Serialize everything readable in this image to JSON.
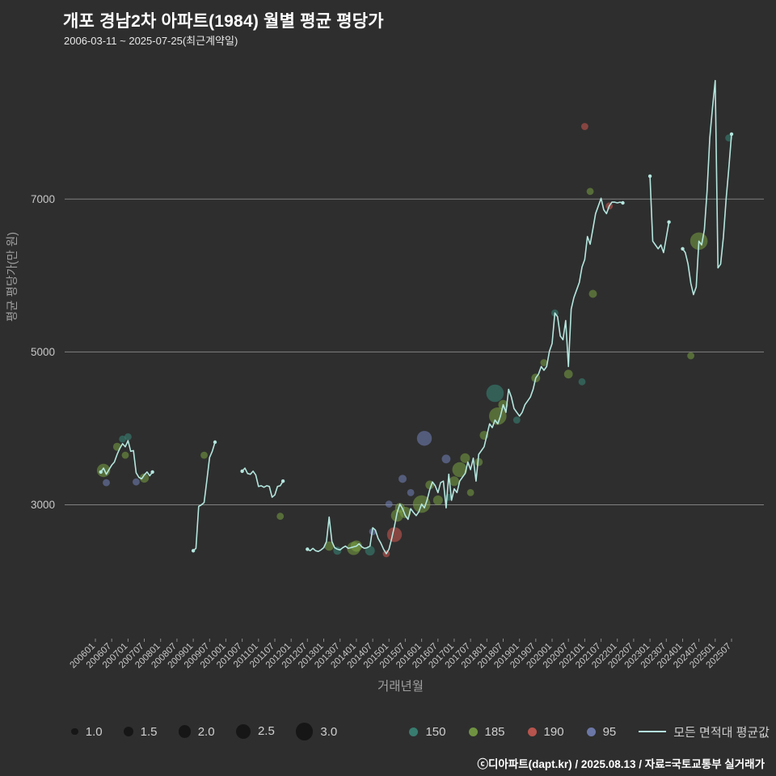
{
  "header": {
    "title": "개포 경남2차 아파트(1984) 월별 평균 평당가",
    "subtitle": "2006-03-11 ~ 2025-07-25(최근계약일)"
  },
  "footer": {
    "credit": "ⓒ디아파트(dapt.kr) / 2025.08.13 / 자료=국토교통부 실거래가"
  },
  "colors": {
    "background": "#2e2e2e",
    "gridline": "#808080",
    "tick_text": "#c8c8c8",
    "axis_title_text": "#9f9f9f",
    "legend_text": "#cfcfcf",
    "size_legend_dot": "#161616"
  },
  "chart_data": {
    "type": "line",
    "title": "개포 경남2차 아파트(1984) 월별 평균 평당가",
    "xlabel": "거래년월",
    "ylabel": "평균 평당가(만 원)",
    "ylim": [
      1250,
      8600
    ],
    "yticks": [
      "3000",
      "5000",
      "7000"
    ],
    "xticks": [
      "200601",
      "200607",
      "200701",
      "200707",
      "200801",
      "200807",
      "200901",
      "200907",
      "201001",
      "201007",
      "201101",
      "201107",
      "201201",
      "201207",
      "201301",
      "201307",
      "201401",
      "201407",
      "201501",
      "201507",
      "201601",
      "201607",
      "201701",
      "201707",
      "201801",
      "201807",
      "201901",
      "201907",
      "202001",
      "202007",
      "202101",
      "202107",
      "202201",
      "202207",
      "202301",
      "202307",
      "202401",
      "202407",
      "202501",
      "202507"
    ],
    "grid": true,
    "legend_position": "bottom",
    "size_legend": [
      {
        "label": "1.0",
        "value": 1.0
      },
      {
        "label": "1.5",
        "value": 1.5
      },
      {
        "label": "2.0",
        "value": 2.0
      },
      {
        "label": "2.5",
        "value": 2.5
      },
      {
        "label": "3.0",
        "value": 3.0
      }
    ],
    "line": {
      "name": "모든 면적대 평균값",
      "color": "#b4e6de",
      "segments": [
        [
          [
            200603,
            3430
          ],
          [
            200604,
            3480
          ],
          [
            200605,
            3400
          ],
          [
            200606,
            3460
          ],
          [
            200607,
            3520
          ],
          [
            200608,
            3560
          ],
          [
            200609,
            3660
          ],
          [
            200610,
            3740
          ],
          [
            200611,
            3800
          ],
          [
            200612,
            3760
          ],
          [
            200701,
            3840
          ],
          [
            200702,
            3700
          ],
          [
            200703,
            3710
          ],
          [
            200704,
            3420
          ],
          [
            200705,
            3360
          ],
          [
            200706,
            3340
          ],
          [
            200707,
            3390
          ],
          [
            200708,
            3430
          ],
          [
            200709,
            3380
          ],
          [
            200710,
            3430
          ]
        ],
        [
          [
            200901,
            2400
          ],
          [
            200902,
            2430
          ],
          [
            200903,
            2980
          ],
          [
            200904,
            3000
          ],
          [
            200905,
            3030
          ],
          [
            200906,
            3320
          ],
          [
            200907,
            3620
          ],
          [
            200908,
            3700
          ],
          [
            200909,
            3820
          ]
        ],
        [
          [
            201007,
            3440
          ],
          [
            201008,
            3480
          ],
          [
            201009,
            3410
          ],
          [
            201010,
            3400
          ],
          [
            201011,
            3440
          ],
          [
            201012,
            3390
          ],
          [
            201101,
            3240
          ],
          [
            201102,
            3250
          ],
          [
            201103,
            3230
          ],
          [
            201104,
            3250
          ],
          [
            201105,
            3240
          ],
          [
            201106,
            3100
          ],
          [
            201107,
            3130
          ],
          [
            201108,
            3240
          ],
          [
            201109,
            3250
          ],
          [
            201110,
            3310
          ]
        ],
        [
          [
            201207,
            2420
          ],
          [
            201208,
            2400
          ],
          [
            201209,
            2430
          ],
          [
            201210,
            2400
          ],
          [
            201211,
            2390
          ],
          [
            201212,
            2410
          ],
          [
            201301,
            2440
          ],
          [
            201302,
            2520
          ],
          [
            201303,
            2840
          ],
          [
            201304,
            2520
          ],
          [
            201305,
            2440
          ],
          [
            201306,
            2420
          ],
          [
            201307,
            2410
          ],
          [
            201308,
            2440
          ],
          [
            201309,
            2460
          ],
          [
            201310,
            2430
          ],
          [
            201311,
            2440
          ],
          [
            201312,
            2450
          ],
          [
            201401,
            2460
          ],
          [
            201402,
            2490
          ],
          [
            201403,
            2450
          ],
          [
            201404,
            2430
          ],
          [
            201405,
            2440
          ],
          [
            201406,
            2460
          ],
          [
            201407,
            2700
          ],
          [
            201408,
            2670
          ],
          [
            201409,
            2560
          ],
          [
            201410,
            2500
          ],
          [
            201411,
            2420
          ],
          [
            201412,
            2360
          ],
          [
            201501,
            2420
          ],
          [
            201502,
            2560
          ],
          [
            201503,
            2720
          ],
          [
            201504,
            2900
          ],
          [
            201505,
            3010
          ],
          [
            201506,
            2950
          ],
          [
            201507,
            2860
          ],
          [
            201508,
            2810
          ],
          [
            201509,
            2950
          ],
          [
            201510,
            2900
          ],
          [
            201511,
            2860
          ],
          [
            201512,
            2910
          ],
          [
            201601,
            3010
          ],
          [
            201602,
            2960
          ],
          [
            201603,
            3060
          ],
          [
            201604,
            3200
          ],
          [
            201605,
            3300
          ],
          [
            201606,
            3250
          ],
          [
            201607,
            3160
          ],
          [
            201608,
            3290
          ],
          [
            201609,
            3310
          ],
          [
            201610,
            2960
          ],
          [
            201611,
            3400
          ],
          [
            201612,
            3060
          ],
          [
            201701,
            3210
          ],
          [
            201702,
            3160
          ],
          [
            201703,
            3310
          ],
          [
            201704,
            3360
          ],
          [
            201705,
            3410
          ],
          [
            201706,
            3560
          ],
          [
            201707,
            3460
          ],
          [
            201708,
            3610
          ],
          [
            201709,
            3310
          ],
          [
            201710,
            3660
          ],
          [
            201711,
            3710
          ],
          [
            201712,
            3760
          ],
          [
            201801,
            3910
          ],
          [
            201802,
            4060
          ],
          [
            201803,
            4010
          ],
          [
            201804,
            4110
          ],
          [
            201805,
            4060
          ],
          [
            201806,
            4160
          ],
          [
            201807,
            4310
          ],
          [
            201808,
            4210
          ],
          [
            201809,
            4510
          ],
          [
            201810,
            4410
          ],
          [
            201811,
            4260
          ],
          [
            201812,
            4210
          ],
          [
            201901,
            4160
          ],
          [
            201902,
            4210
          ],
          [
            201903,
            4310
          ],
          [
            201904,
            4360
          ],
          [
            201905,
            4410
          ],
          [
            201906,
            4510
          ],
          [
            201907,
            4660
          ],
          [
            201908,
            4710
          ],
          [
            201909,
            4810
          ],
          [
            201910,
            4760
          ],
          [
            201911,
            4810
          ],
          [
            201912,
            5010
          ],
          [
            202001,
            5110
          ],
          [
            202002,
            5510
          ],
          [
            202003,
            5460
          ],
          [
            202004,
            5210
          ],
          [
            202005,
            5160
          ],
          [
            202006,
            5410
          ],
          [
            202007,
            4810
          ],
          [
            202008,
            5560
          ],
          [
            202009,
            5710
          ],
          [
            202010,
            5810
          ],
          [
            202011,
            5910
          ],
          [
            202012,
            6110
          ],
          [
            202101,
            6210
          ],
          [
            202102,
            6510
          ],
          [
            202103,
            6410
          ],
          [
            202104,
            6610
          ],
          [
            202105,
            6810
          ],
          [
            202106,
            6910
          ],
          [
            202107,
            7010
          ],
          [
            202108,
            6860
          ],
          [
            202109,
            6810
          ],
          [
            202110,
            6910
          ],
          [
            202111,
            6960
          ],
          [
            202112,
            6960
          ],
          [
            202201,
            6950
          ],
          [
            202202,
            6960
          ],
          [
            202203,
            6950
          ]
        ],
        [
          [
            202301,
            7300
          ],
          [
            202302,
            6450
          ],
          [
            202303,
            6400
          ],
          [
            202304,
            6350
          ],
          [
            202305,
            6400
          ],
          [
            202306,
            6300
          ],
          [
            202307,
            6500
          ],
          [
            202308,
            6700
          ]
        ],
        [
          [
            202401,
            6350
          ],
          [
            202402,
            6300
          ],
          [
            202403,
            6150
          ],
          [
            202404,
            5900
          ],
          [
            202405,
            5750
          ],
          [
            202406,
            5850
          ],
          [
            202407,
            6450
          ],
          [
            202408,
            6400
          ],
          [
            202409,
            6600
          ],
          [
            202410,
            7100
          ],
          [
            202411,
            7800
          ],
          [
            202412,
            8200
          ],
          [
            202501,
            8550
          ],
          [
            202502,
            6100
          ],
          [
            202503,
            6150
          ],
          [
            202504,
            6500
          ],
          [
            202505,
            7000
          ],
          [
            202506,
            7400
          ],
          [
            202507,
            7850
          ]
        ]
      ]
    },
    "bubbles": {
      "groups": [
        {
          "label": "150",
          "color": "#39897a"
        },
        {
          "label": "185",
          "color": "#7aa344"
        },
        {
          "label": "190",
          "color": "#cf5a52"
        },
        {
          "label": "95",
          "color": "#7584bb"
        }
      ],
      "points": [
        [
          200604,
          3450,
          "185",
          2.2
        ],
        [
          200605,
          3290,
          "95",
          1.0
        ],
        [
          200609,
          3760,
          "185",
          1.2
        ],
        [
          200611,
          3860,
          "150",
          1.0
        ],
        [
          200612,
          3650,
          "185",
          1.0
        ],
        [
          200701,
          3890,
          "150",
          1.0
        ],
        [
          200704,
          3300,
          "95",
          1.0
        ],
        [
          200707,
          3350,
          "185",
          1.4
        ],
        [
          200905,
          3650,
          "185",
          1.0
        ],
        [
          201109,
          2850,
          "185",
          1.0
        ],
        [
          201303,
          2460,
          "185",
          1.4
        ],
        [
          201306,
          2400,
          "150",
          1.2
        ],
        [
          201312,
          2430,
          "185",
          2.2
        ],
        [
          201401,
          2460,
          "185",
          1.8
        ],
        [
          201406,
          2400,
          "150",
          1.5
        ],
        [
          201407,
          2650,
          "95",
          1.0
        ],
        [
          201412,
          2360,
          "190",
          1.0
        ],
        [
          201501,
          3010,
          "95",
          1.0
        ],
        [
          201503,
          2610,
          "190",
          2.5
        ],
        [
          201504,
          2860,
          "185",
          2.0
        ],
        [
          201505,
          2960,
          "185",
          1.5
        ],
        [
          201506,
          3340,
          "95",
          1.2
        ],
        [
          201507,
          2900,
          "185",
          1.8
        ],
        [
          201509,
          3160,
          "95",
          1.0
        ],
        [
          201601,
          3010,
          "185",
          3.0
        ],
        [
          201602,
          3870,
          "95",
          2.5
        ],
        [
          201604,
          3260,
          "185",
          1.3
        ],
        [
          201607,
          3060,
          "185",
          1.5
        ],
        [
          201610,
          3600,
          "95",
          1.3
        ],
        [
          201611,
          3100,
          "150",
          1.0
        ],
        [
          201701,
          3310,
          "185",
          1.5
        ],
        [
          201703,
          3460,
          "185",
          2.5
        ],
        [
          201705,
          3610,
          "185",
          1.5
        ],
        [
          201707,
          3160,
          "185",
          1.0
        ],
        [
          201710,
          3560,
          "185",
          1.2
        ],
        [
          201712,
          3910,
          "185",
          1.3
        ],
        [
          201804,
          4460,
          "150",
          3.0
        ],
        [
          201805,
          4160,
          "185",
          3.0
        ],
        [
          201807,
          4310,
          "185",
          1.5
        ],
        [
          201812,
          4110,
          "150",
          1.0
        ],
        [
          201907,
          4660,
          "185",
          1.3
        ],
        [
          201910,
          4860,
          "185",
          1.0
        ],
        [
          202002,
          5510,
          "150",
          1.0
        ],
        [
          202007,
          4710,
          "185",
          1.3
        ],
        [
          202012,
          4610,
          "150",
          1.0
        ],
        [
          202101,
          7950,
          "190",
          1.0
        ],
        [
          202103,
          7100,
          "185",
          1.0
        ],
        [
          202104,
          5760,
          "185",
          1.2
        ],
        [
          202110,
          6910,
          "190",
          1.0
        ],
        [
          202404,
          4950,
          "185",
          1.0
        ],
        [
          202407,
          6450,
          "185",
          3.0
        ],
        [
          202506,
          7800,
          "150",
          1.0
        ]
      ]
    }
  }
}
